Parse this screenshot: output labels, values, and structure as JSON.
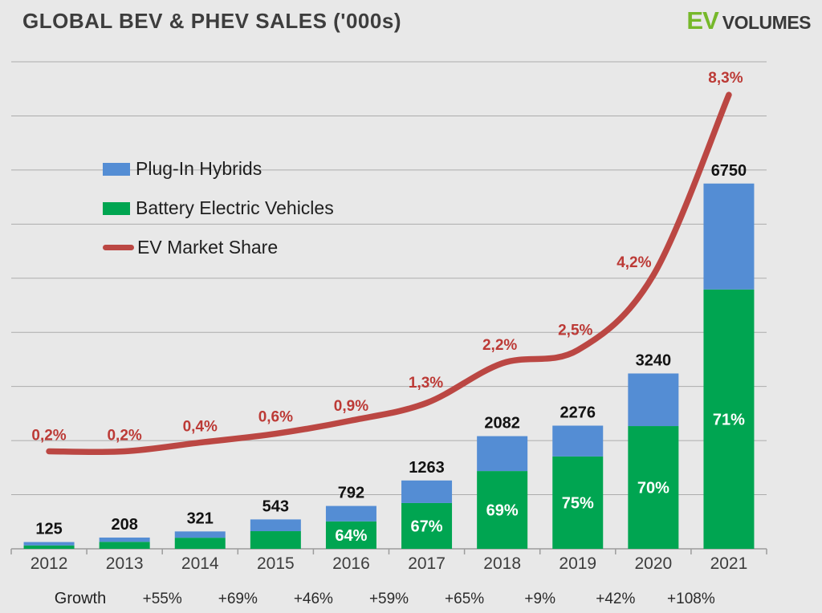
{
  "header": {
    "title": "GLOBAL BEV & PHEV SALES ('000s)",
    "logo_ev": "EV",
    "logo_volumes": "VOLUMES"
  },
  "legend": {
    "items": [
      {
        "label": "Plug-In Hybrids",
        "swatch": "square-blue"
      },
      {
        "label": "Battery Electric Vehicles",
        "swatch": "square-green"
      },
      {
        "label": "EV Market Share",
        "swatch": "line-red"
      }
    ]
  },
  "colors": {
    "phev_blue": "#548dd4",
    "bev_green": "#00a551",
    "share_red": "#bb4743",
    "share_label_red": "#bc3a36",
    "background": "#e8e8e8",
    "gridline": "#acacac",
    "axis": "#9c9c9c",
    "logo_green": "#76b82a"
  },
  "chart_data": {
    "type": "bar",
    "subtype": "stacked-bars-with-secondary-line",
    "title": "GLOBAL BEV & PHEV SALES ('000s)",
    "categories": [
      "2012",
      "2013",
      "2014",
      "2015",
      "2016",
      "2017",
      "2018",
      "2019",
      "2020",
      "2021"
    ],
    "series": [
      {
        "name": "Battery Electric Vehicles",
        "type": "bar",
        "stack": "sales",
        "values": [
          63,
          129,
          205,
          326,
          507,
          846,
          1437,
          1707,
          2268,
          4793
        ]
      },
      {
        "name": "Plug-In Hybrids",
        "type": "bar",
        "stack": "sales",
        "values": [
          62,
          79,
          116,
          217,
          285,
          417,
          645,
          569,
          972,
          1957
        ]
      },
      {
        "name": "EV Market Share",
        "type": "line",
        "axis": "secondary",
        "unit": "%",
        "values": [
          0.2,
          0.2,
          0.4,
          0.6,
          0.9,
          1.3,
          2.2,
          2.5,
          4.2,
          8.3
        ]
      }
    ],
    "totals": [
      125,
      208,
      321,
      543,
      792,
      1263,
      2082,
      2276,
      3240,
      6750
    ],
    "bev_share_labels": [
      "",
      "",
      "",
      "",
      "64%",
      "67%",
      "69%",
      "75%",
      "70%",
      "71%"
    ],
    "market_share_labels": [
      "0,2%",
      "0,2%",
      "0,4%",
      "0,6%",
      "0,9%",
      "1,3%",
      "2,2%",
      "2,5%",
      "4,2%",
      "8,3%"
    ],
    "growth_row": {
      "label": "Growth",
      "values": [
        "+55%",
        "+69%",
        "+46%",
        "+59%",
        "+65%",
        "+9%",
        "+42%",
        "+108%"
      ],
      "between_years": [
        [
          "2013",
          "2014"
        ],
        [
          "2014",
          "2015"
        ],
        [
          "2015",
          "2016"
        ],
        [
          "2016",
          "2017"
        ],
        [
          "2017",
          "2018"
        ],
        [
          "2018",
          "2019"
        ],
        [
          "2019",
          "2020"
        ],
        [
          "2020",
          "2021"
        ]
      ]
    },
    "ylabel": "",
    "xlabel": "",
    "ylim": [
      0,
      9000
    ],
    "gridline_step": 1000,
    "y_axis_labels_visible": false,
    "grid": true,
    "legend_position": "upper-left-inside"
  }
}
